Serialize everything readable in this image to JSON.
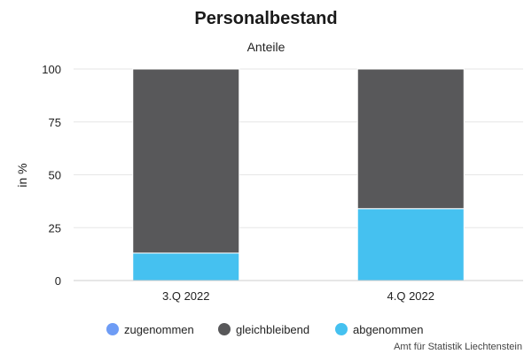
{
  "chart_data": {
    "type": "bar",
    "stacked": true,
    "title": "Personalbestand",
    "subtitle": "Anteile",
    "ylabel": "in %",
    "ylim": [
      0,
      100
    ],
    "yticks": [
      0,
      25,
      50,
      75,
      100
    ],
    "categories": [
      "3.Q 2022",
      "4.Q 2022"
    ],
    "series": [
      {
        "name": "zugenommen",
        "values": [
          0,
          0
        ],
        "color": "#6e9cf5"
      },
      {
        "name": "gleichbleibend",
        "values": [
          87,
          66
        ],
        "color": "#58585a"
      },
      {
        "name": "abgenommen",
        "values": [
          13,
          34
        ],
        "color": "#45c1f0"
      }
    ],
    "stack_order_bottom_to_top": [
      "abgenommen",
      "gleichbleibend",
      "zugenommen"
    ],
    "grid": true,
    "legend_position": "bottom"
  },
  "credit": "Amt für Statistik Liechtenstein"
}
